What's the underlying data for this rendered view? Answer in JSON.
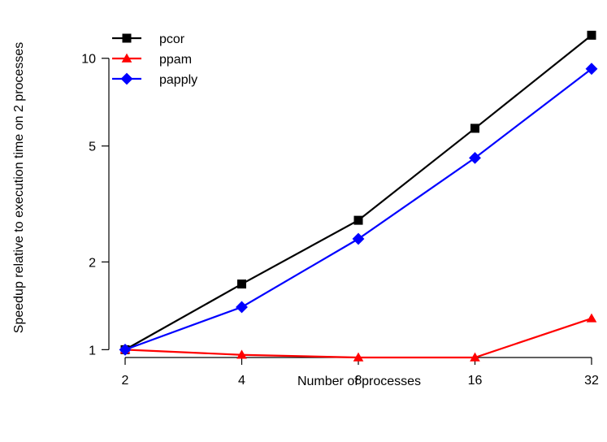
{
  "chart_data": {
    "type": "line",
    "title": "",
    "xlabel": "Number of processes",
    "ylabel": "Speedup relative to execution time on 2 processes",
    "x_scale": "log2",
    "y_scale": "log",
    "x": [
      2,
      4,
      8,
      16,
      32
    ],
    "x_tick_labels": [
      "2",
      "4",
      "8",
      "16",
      "32"
    ],
    "y_ticks": [
      1,
      2,
      5,
      10
    ],
    "y_tick_labels": [
      "1",
      "2",
      "5",
      "10"
    ],
    "ylim": [
      0.94,
      13.5
    ],
    "grid": false,
    "legend_position": "top-left",
    "series": [
      {
        "name": "pcor",
        "color": "#000000",
        "marker": "square",
        "values": [
          1.0,
          1.68,
          2.78,
          5.75,
          12.0
        ]
      },
      {
        "name": "ppam",
        "color": "#ff0000",
        "marker": "triangle",
        "values": [
          1.0,
          0.96,
          0.94,
          0.94,
          1.28
        ]
      },
      {
        "name": "papply",
        "color": "#0000ff",
        "marker": "diamond",
        "values": [
          1.0,
          1.4,
          2.4,
          4.55,
          9.2
        ]
      }
    ]
  }
}
